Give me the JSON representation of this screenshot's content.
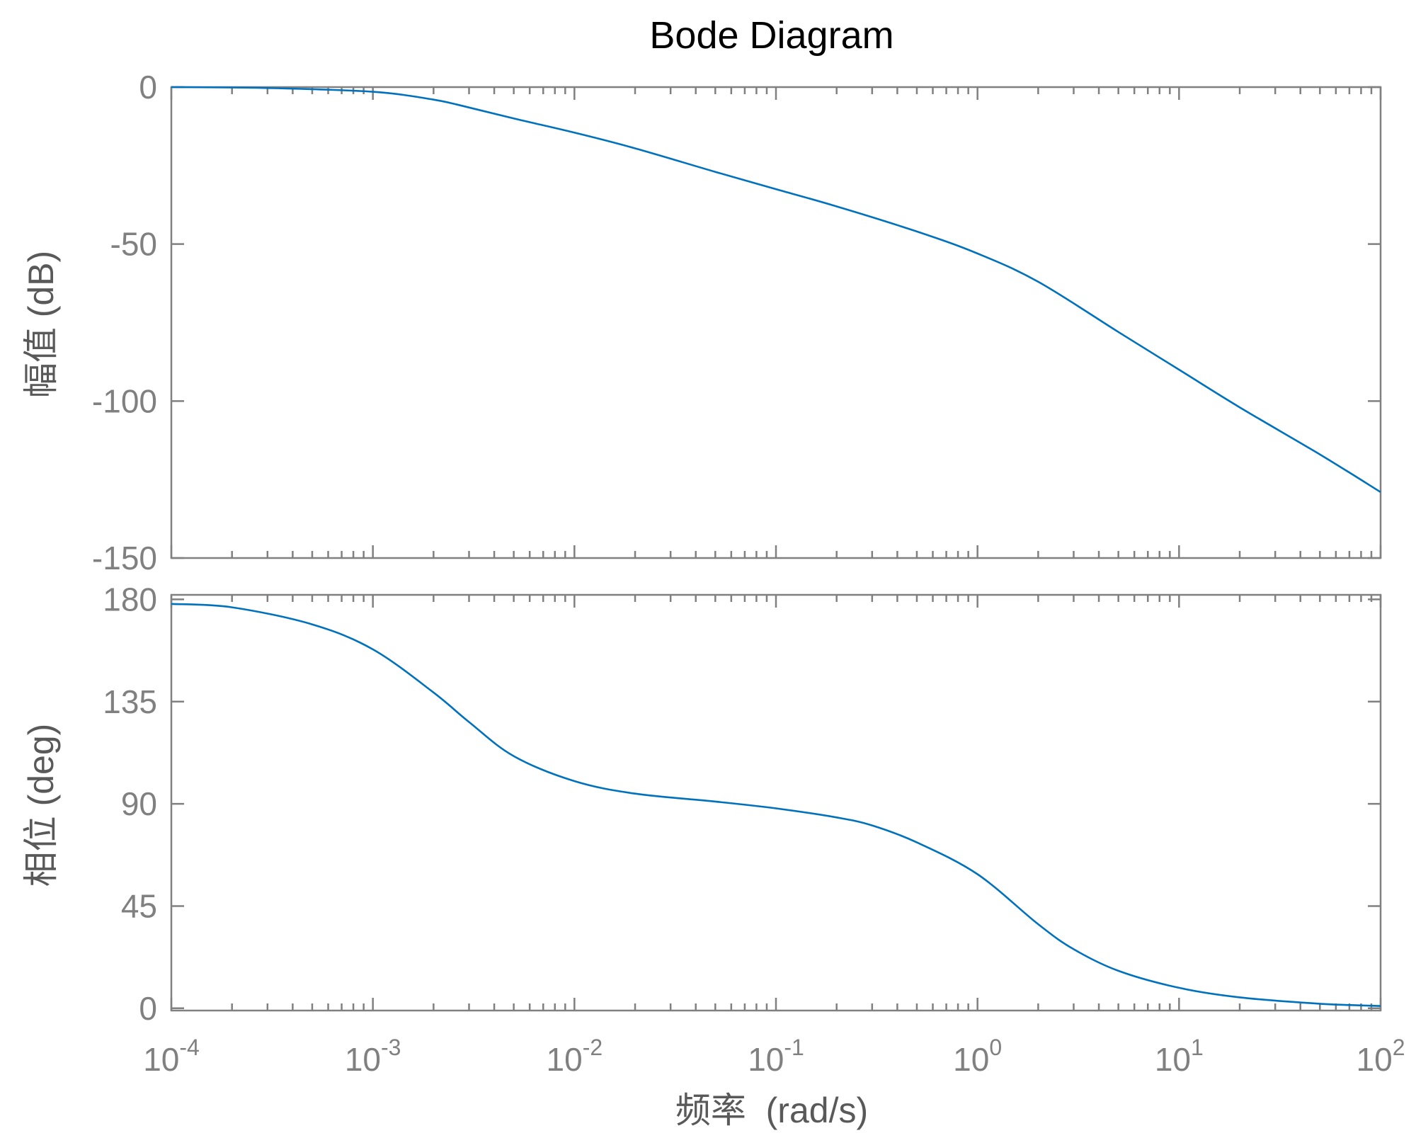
{
  "chart_data": [
    {
      "type": "line",
      "panel": "magnitude",
      "title": "Bode Diagram",
      "xlabel": "",
      "ylabel": "幅值 (dB)",
      "xscale": "log",
      "xlim": [
        0.0001,
        100
      ],
      "ylim": [
        -150,
        0
      ],
      "yticks": [
        0,
        -50,
        -100,
        -150
      ],
      "ytick_labels": [
        "0",
        "-50",
        "-100",
        "-150"
      ],
      "grid": false,
      "series": [
        {
          "color": "#0072bd",
          "x": [
            0.0001,
            0.0003,
            0.001,
            0.002,
            0.003,
            0.005,
            0.01,
            0.02,
            0.05,
            0.1,
            0.2,
            0.5,
            1,
            2,
            5,
            10,
            20,
            50,
            100
          ],
          "y": [
            0,
            -0.3,
            -1.5,
            -4,
            -6.5,
            -10,
            -14.5,
            -19.5,
            -27,
            -32.5,
            -38,
            -46,
            -53,
            -62,
            -78,
            -90,
            -102,
            -117,
            -129
          ]
        }
      ]
    },
    {
      "type": "line",
      "panel": "phase",
      "xlabel": "频率  (rad/s)",
      "ylabel": "相位 (deg)",
      "xscale": "log",
      "xlim": [
        0.0001,
        100
      ],
      "ylim": [
        -1,
        182
      ],
      "yticks": [
        0,
        45,
        90,
        135,
        180
      ],
      "ytick_labels": [
        "0",
        "45",
        "90",
        "135",
        "180"
      ],
      "xtick_labels": [
        {
          "base": "10",
          "exp": "-4"
        },
        {
          "base": "10",
          "exp": "-3"
        },
        {
          "base": "10",
          "exp": "-2"
        },
        {
          "base": "10",
          "exp": "-1"
        },
        {
          "base": "10",
          "exp": "0"
        },
        {
          "base": "10",
          "exp": "1"
        },
        {
          "base": "10",
          "exp": "2"
        }
      ],
      "grid": false,
      "series": [
        {
          "color": "#0072bd",
          "x": [
            0.0001,
            0.0002,
            0.0005,
            0.001,
            0.002,
            0.003,
            0.005,
            0.01,
            0.02,
            0.05,
            0.1,
            0.2,
            0.3,
            0.5,
            1,
            2,
            3,
            5,
            10,
            20,
            50,
            100
          ],
          "y": [
            178,
            176.5,
            169,
            158,
            139,
            126,
            111,
            100,
            94.5,
            91,
            88,
            84,
            80.5,
            73,
            59,
            37,
            26,
            16.5,
            9,
            4.8,
            2,
            1
          ]
        }
      ]
    }
  ]
}
